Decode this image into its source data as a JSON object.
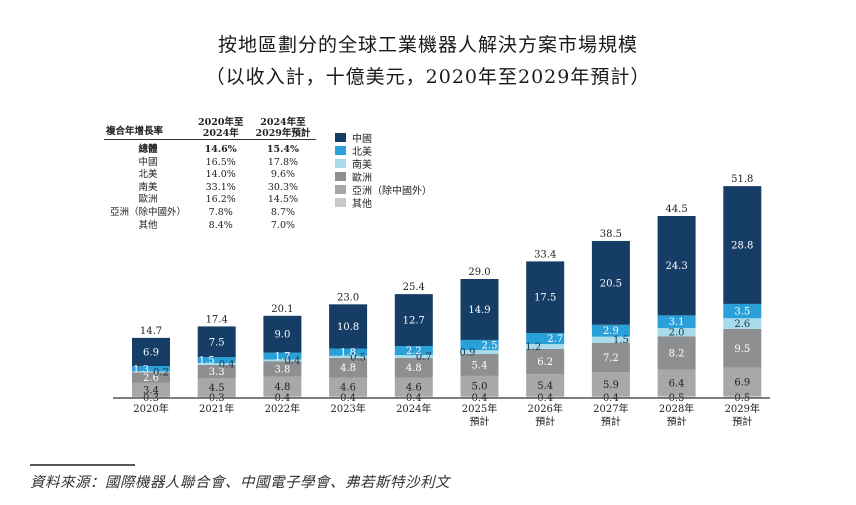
{
  "title": "按地區劃分的全球工業機器人解決方案市場規模",
  "subtitle": "（以收入計，十億美元，2020年至2029年預計）",
  "cagr_table": {
    "header": [
      "複合年增長率",
      "2020年至\n2024年",
      "2024年至\n2029年預計"
    ],
    "header_lines": [
      [
        "複合年增長率"
      ],
      [
        "2020年至",
        "2024年"
      ],
      [
        "2024年至",
        "2029年預計"
      ]
    ],
    "rows": [
      {
        "region": "總體",
        "cagr_2020_2024": "14.6%",
        "cagr_2024_2029": "15.4%",
        "bold": true
      },
      {
        "region": "中國",
        "cagr_2020_2024": "16.5%",
        "cagr_2024_2029": "17.8%"
      },
      {
        "region": "北美",
        "cagr_2020_2024": "14.0%",
        "cagr_2024_2029": "9.6%"
      },
      {
        "region": "南美",
        "cagr_2020_2024": "33.1%",
        "cagr_2024_2029": "30.3%"
      },
      {
        "region": "歐洲",
        "cagr_2020_2024": "16.2%",
        "cagr_2024_2029": "14.5%"
      },
      {
        "region": "亞洲（除中國外）",
        "cagr_2020_2024": "7.8%",
        "cagr_2024_2029": "8.7%"
      },
      {
        "region": "其他",
        "cagr_2020_2024": "8.4%",
        "cagr_2024_2029": "7.0%"
      }
    ]
  },
  "source": "資料來源：國際機器人聯合會、中國電子學會、弗若斯特沙利文",
  "chart_data": {
    "type": "bar",
    "stacked": true,
    "title": "按地區劃分的全球工業機器人解決方案市場規模",
    "subtitle": "（以收入計，十億美元，2020年至2029年預計）",
    "xlabel": "",
    "ylabel": "",
    "ylim": [
      0,
      55
    ],
    "grid": false,
    "legend_position": "top-center",
    "categories": [
      [
        "2020年"
      ],
      [
        "2021年"
      ],
      [
        "2022年"
      ],
      [
        "2023年"
      ],
      [
        "2024年"
      ],
      [
        "2025年",
        "預計"
      ],
      [
        "2026年",
        "預計"
      ],
      [
        "2027年",
        "預計"
      ],
      [
        "2028年",
        "預計"
      ],
      [
        "2029年",
        "預計"
      ]
    ],
    "totals": [
      "14.7",
      "17.4",
      "20.1",
      "23.0",
      "25.4",
      "29.0",
      "33.4",
      "38.5",
      "44.5",
      "51.8"
    ],
    "series": [
      {
        "name": "其他",
        "color": "#c8c9cb",
        "label_color": "#222222",
        "values": [
          0.3,
          0.3,
          0.4,
          0.4,
          0.4,
          0.4,
          0.4,
          0.4,
          0.5,
          0.5
        ],
        "labels": [
          "0.3",
          "0.3",
          "0.4",
          "0.4",
          "0.4",
          "0.4",
          "0.4",
          "0.4",
          "0.5",
          "0.5"
        ]
      },
      {
        "name": "亞洲（除中國外）",
        "color": "#a7a8aa",
        "label_color": "#222222",
        "values": [
          3.4,
          4.5,
          4.8,
          4.6,
          4.6,
          5.0,
          5.4,
          5.9,
          6.4,
          6.9
        ],
        "labels": [
          "3.4",
          "4.5",
          "4.8",
          "4.6",
          "4.6",
          "5.0",
          "5.4",
          "5.9",
          "6.4",
          "6.9"
        ]
      },
      {
        "name": "歐洲",
        "color": "#8e8f91",
        "label_color": "#ffffff",
        "values": [
          2.6,
          3.3,
          3.8,
          4.8,
          4.8,
          5.4,
          6.2,
          7.2,
          8.2,
          9.5
        ],
        "labels": [
          "2.6",
          "3.3",
          "3.8",
          "4.8",
          "4.8",
          "5.4",
          "6.2",
          "7.2",
          "8.2",
          "9.5"
        ]
      },
      {
        "name": "南美",
        "color": "#a9dcea",
        "label_color": "#1d3550",
        "values": [
          0.2,
          0.4,
          0.4,
          0.5,
          0.7,
          0.9,
          1.2,
          1.5,
          2.0,
          2.6
        ],
        "labels": [
          "0.2",
          "0.4",
          "0.4",
          "0.5",
          "0.7",
          "0.9",
          "1.2",
          "1.5",
          "2.0",
          "2.6"
        ]
      },
      {
        "name": "北美",
        "color": "#2aa0d8",
        "label_color": "#ffffff",
        "values": [
          1.3,
          1.5,
          1.7,
          1.8,
          2.2,
          2.5,
          2.7,
          2.9,
          3.1,
          3.5
        ],
        "labels": [
          "1.3",
          "1.5",
          "1.7",
          "1.8",
          "2.2",
          "2.5",
          "2.7",
          "2.9",
          "3.1",
          "3.5"
        ]
      },
      {
        "name": "中國",
        "color": "#163d66",
        "label_color": "#ffffff",
        "values": [
          6.9,
          7.5,
          9.0,
          10.8,
          12.7,
          14.9,
          17.5,
          20.5,
          24.3,
          28.8
        ],
        "labels": [
          "6.9",
          "7.5",
          "9.0",
          "10.8",
          "12.7",
          "14.9",
          "17.5",
          "20.5",
          "24.3",
          "28.8"
        ]
      }
    ],
    "legend_order": [
      "中國",
      "北美",
      "南美",
      "歐洲",
      "亞洲（除中國外）",
      "其他"
    ]
  }
}
